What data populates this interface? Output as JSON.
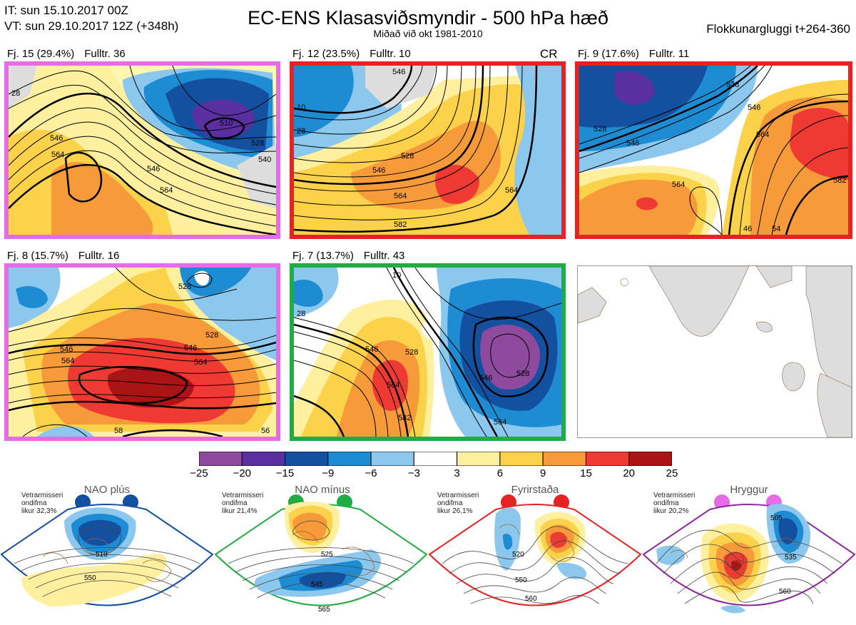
{
  "header": {
    "it_line": "IT: sun 15.10.2017 00Z",
    "vt_line": "VT: sun 29.10.2017 12Z  (+348h)",
    "title": "EC-ENS Klasasviðsmyndir - 500 hPa hæð",
    "subtitle": "Miðað við okt 1981-2010",
    "window": "Flokkunargluggi t+264-360"
  },
  "panels": [
    {
      "label": "Fj. 15 (29.4%)",
      "members": "Fulltr. 36",
      "border": "#e66ce6",
      "extra": "",
      "contours": [
        "28",
        "546",
        "564",
        "510",
        "528",
        "540",
        "546",
        "564"
      ]
    },
    {
      "label": "Fj. 12 (23.5%)",
      "members": "Fulltr. 10",
      "border": "#e62222",
      "extra": "CR",
      "contours": [
        "546",
        "28",
        "10",
        "528",
        "546",
        "564",
        "564",
        "582"
      ]
    },
    {
      "label": "Fj. 9 (17.6%)",
      "members": "Fulltr. 11",
      "border": "#e62222",
      "extra": "",
      "contours": [
        "528",
        "546",
        "546",
        "564",
        "528",
        "564",
        "582",
        "46",
        "54"
      ]
    },
    {
      "label": "Fj. 8 (15.7%)",
      "members": "Fulltr. 16",
      "border": "#e66ce6",
      "extra": "",
      "contours": [
        "528",
        "546",
        "564",
        "528",
        "546",
        "564",
        "58",
        "56"
      ]
    },
    {
      "label": "Fj. 7 (13.7%)",
      "members": "Fulltr. 43",
      "border": "#22aa44",
      "extra": "",
      "contours": [
        "28",
        "546",
        "564",
        "582",
        "528",
        "546",
        "528",
        "564",
        "10"
      ]
    }
  ],
  "colorbar": {
    "colors": [
      "#8e4a9c",
      "#5a2fa0",
      "#1450a0",
      "#1e8cd2",
      "#8cc8ee",
      "#ffffff",
      "#fff0a0",
      "#fcd24a",
      "#f79a3a",
      "#ee3a32",
      "#aa1414"
    ],
    "ticks": [
      "−25",
      "−20",
      "−15",
      "−9",
      "−6",
      "−3",
      "3",
      "6",
      "9",
      "15",
      "20",
      "25"
    ]
  },
  "regimes": [
    {
      "title": "NAO plús",
      "info": [
        "Vetrarmisseri",
        "ondifma",
        "likur 32,3%"
      ],
      "dot": "#1450a0",
      "border": "#1450a0",
      "contours": [
        "510",
        "550"
      ]
    },
    {
      "title": "NAO mínus",
      "info": [
        "Vetrarmisseri",
        "ondifma",
        "likur 21,4%"
      ],
      "dot": "#22aa44",
      "border": "#22aa44",
      "contours": [
        "525",
        "545",
        "565"
      ]
    },
    {
      "title": "Fyrirstaða",
      "info": [
        "Vetrarmisseri",
        "ondifma",
        "likur 26,1%"
      ],
      "dot": "#e62222",
      "border": "#e62222",
      "contours": [
        "520",
        "550",
        "560"
      ]
    },
    {
      "title": "Hryggur",
      "info": [
        "Vetrarmisseri",
        "ondifma",
        "likur 20,2%"
      ],
      "dot": "#e66ce6",
      "border": "#8a2a9a",
      "contours": [
        "505",
        "535",
        "560"
      ]
    }
  ]
}
